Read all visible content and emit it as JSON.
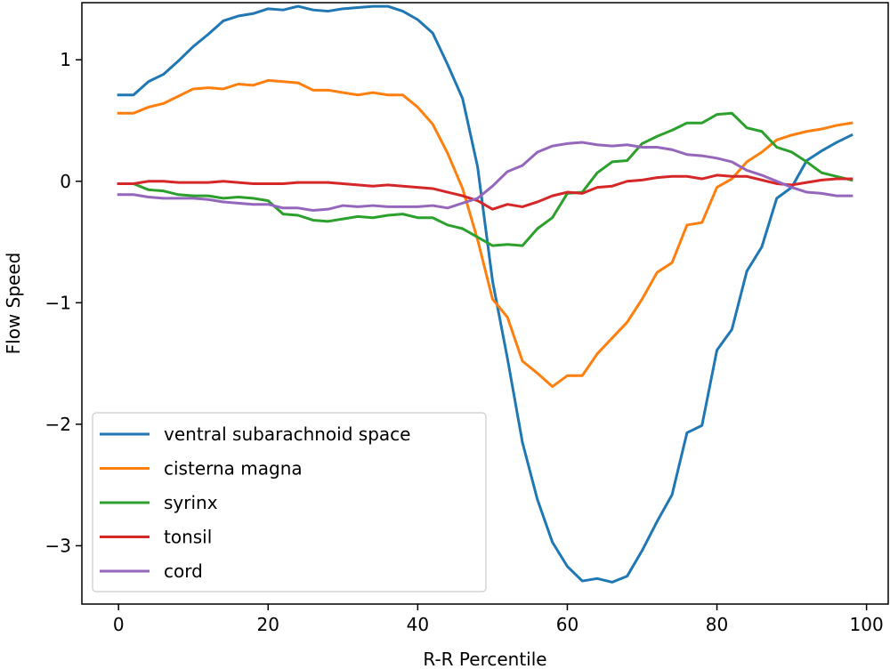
{
  "chart_data": {
    "type": "line",
    "title": "",
    "xlabel": "R-R Percentile",
    "ylabel": "Flow Speed",
    "xlim": [
      -4.9,
      102.9
    ],
    "ylim": [
      -3.48,
      1.47
    ],
    "xticks": [
      0,
      20,
      40,
      60,
      80,
      100
    ],
    "yticks": [
      1,
      0,
      -1,
      -2,
      -3
    ],
    "xtick_labels": [
      "0",
      "20",
      "40",
      "60",
      "80",
      "100"
    ],
    "ytick_labels": [
      "1",
      "0",
      "−1",
      "−2",
      "−3"
    ],
    "grid": false,
    "legend_position": "lower-left",
    "x": [
      0,
      2,
      4,
      6,
      8,
      10,
      12,
      14,
      16,
      18,
      20,
      22,
      24,
      26,
      28,
      30,
      32,
      34,
      36,
      38,
      40,
      42,
      44,
      46,
      48,
      50,
      52,
      54,
      56,
      58,
      60,
      62,
      64,
      66,
      68,
      70,
      72,
      74,
      76,
      78,
      80,
      82,
      84,
      86,
      88,
      90,
      92,
      94,
      96,
      98
    ],
    "series": [
      {
        "name": "ventral subarachnoid space",
        "color": "#1f77b4",
        "values": [
          0.71,
          0.71,
          0.82,
          0.88,
          0.99,
          1.11,
          1.21,
          1.32,
          1.36,
          1.38,
          1.42,
          1.41,
          1.44,
          1.41,
          1.4,
          1.42,
          1.43,
          1.44,
          1.44,
          1.4,
          1.33,
          1.22,
          0.96,
          0.68,
          0.12,
          -0.82,
          -1.46,
          -2.15,
          -2.62,
          -2.97,
          -3.17,
          -3.29,
          -3.27,
          -3.3,
          -3.25,
          -3.04,
          -2.8,
          -2.58,
          -2.07,
          -2.01,
          -1.39,
          -1.22,
          -0.74,
          -0.54,
          -0.14,
          -0.05,
          0.17,
          0.25,
          0.32,
          0.38
        ]
      },
      {
        "name": "cisterna magna",
        "color": "#ff7f0e",
        "values": [
          0.56,
          0.56,
          0.61,
          0.64,
          0.7,
          0.76,
          0.77,
          0.76,
          0.8,
          0.79,
          0.83,
          0.82,
          0.81,
          0.75,
          0.75,
          0.73,
          0.71,
          0.73,
          0.71,
          0.71,
          0.61,
          0.47,
          0.23,
          -0.06,
          -0.48,
          -0.97,
          -1.12,
          -1.48,
          -1.58,
          -1.69,
          -1.6,
          -1.6,
          -1.42,
          -1.29,
          -1.16,
          -0.97,
          -0.75,
          -0.67,
          -0.36,
          -0.34,
          -0.05,
          0.02,
          0.16,
          0.24,
          0.34,
          0.38,
          0.41,
          0.43,
          0.46,
          0.48
        ]
      },
      {
        "name": "syrinx",
        "color": "#2ca02c",
        "values": [
          -0.02,
          -0.02,
          -0.07,
          -0.08,
          -0.11,
          -0.12,
          -0.12,
          -0.14,
          -0.13,
          -0.14,
          -0.16,
          -0.27,
          -0.28,
          -0.32,
          -0.33,
          -0.31,
          -0.29,
          -0.3,
          -0.28,
          -0.27,
          -0.3,
          -0.3,
          -0.36,
          -0.39,
          -0.46,
          -0.53,
          -0.52,
          -0.53,
          -0.39,
          -0.3,
          -0.1,
          -0.09,
          0.07,
          0.16,
          0.17,
          0.31,
          0.37,
          0.42,
          0.48,
          0.48,
          0.55,
          0.56,
          0.44,
          0.41,
          0.28,
          0.24,
          0.16,
          0.07,
          0.04,
          0.01
        ]
      },
      {
        "name": "tonsil",
        "color": "#d62728",
        "values": [
          -0.02,
          -0.02,
          0.0,
          0.0,
          -0.01,
          -0.01,
          -0.01,
          0.0,
          -0.01,
          -0.02,
          -0.02,
          -0.02,
          -0.01,
          -0.01,
          -0.01,
          -0.02,
          -0.03,
          -0.04,
          -0.03,
          -0.04,
          -0.05,
          -0.06,
          -0.09,
          -0.12,
          -0.16,
          -0.23,
          -0.19,
          -0.21,
          -0.17,
          -0.12,
          -0.09,
          -0.1,
          -0.05,
          -0.04,
          0.0,
          0.01,
          0.03,
          0.04,
          0.04,
          0.02,
          0.05,
          0.04,
          0.04,
          0.01,
          -0.02,
          -0.03,
          -0.01,
          0.01,
          0.02,
          0.02
        ]
      },
      {
        "name": "cord",
        "color": "#9467bd",
        "values": [
          -0.11,
          -0.11,
          -0.13,
          -0.14,
          -0.14,
          -0.14,
          -0.15,
          -0.17,
          -0.18,
          -0.19,
          -0.19,
          -0.22,
          -0.22,
          -0.24,
          -0.23,
          -0.2,
          -0.21,
          -0.2,
          -0.21,
          -0.21,
          -0.21,
          -0.2,
          -0.22,
          -0.18,
          -0.14,
          -0.04,
          0.08,
          0.13,
          0.24,
          0.29,
          0.31,
          0.32,
          0.3,
          0.29,
          0.3,
          0.28,
          0.28,
          0.26,
          0.22,
          0.21,
          0.19,
          0.16,
          0.09,
          0.05,
          0.0,
          -0.05,
          -0.09,
          -0.1,
          -0.12,
          -0.12
        ]
      }
    ]
  }
}
